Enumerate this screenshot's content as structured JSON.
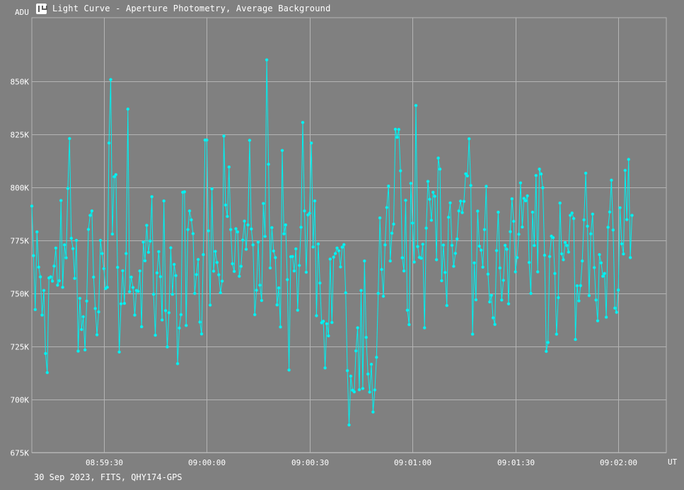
{
  "window": {
    "title": "Light Curve - Aperture Photometry, Average Background",
    "icon": "light-curve-app-icon"
  },
  "footer": "30 Sep 2023, FITS, QHY174-GPS",
  "colors": {
    "background": "#808080",
    "grid": "#b4b4b4",
    "series": "#00f0f0",
    "text": "#ffffff"
  },
  "chart_data": {
    "type": "line",
    "title": "Light Curve - Aperture Photometry, Average Background",
    "xlabel": "UT",
    "ylabel": "ADU",
    "xlim": [
      "08:59:09",
      "09:02:14"
    ],
    "ylim": [
      675000,
      880000
    ],
    "x_ticks": [
      "08:59:30",
      "09:00:00",
      "09:00:30",
      "09:01:00",
      "09:01:30",
      "09:02:00"
    ],
    "y_ticks": [
      {
        "value": 675000,
        "label": "675K"
      },
      {
        "value": 700000,
        "label": "700K"
      },
      {
        "value": 725000,
        "label": "725K"
      },
      {
        "value": 750000,
        "label": "750K"
      },
      {
        "value": 775000,
        "label": "775K"
      },
      {
        "value": 800000,
        "label": "800K"
      },
      {
        "value": 825000,
        "label": "825K"
      },
      {
        "value": 850000,
        "label": "850K"
      }
    ],
    "grid": true,
    "markers": true,
    "series": [
      {
        "x_start": "08:59:09",
        "x_step_seconds": 0.5,
        "values": [
          791200,
          767800,
          742400,
          779000,
          762400,
          757800,
          739800,
          751400,
          721700,
          712700,
          757300,
          757800,
          755800,
          762900,
          771400,
          753900,
          756000,
          793800,
          752900,
          772900,
          766800,
          799500,
          823000,
          776000,
          771100,
          757100,
          775000,
          722800,
          747700,
          733000,
          739000,
          723400,
          746400,
          780200,
          786800,
          788900,
          757700,
          742900,
          730500,
          741300,
          775000,
          768800,
          761700,
          752300,
          752900,
          820900,
          850800,
          778000,
          805000,
          806000,
          762300,
          722400,
          745100,
          760700,
          745300,
          768800,
          836900,
          750800,
          757700,
          752800,
          739800,
          751400,
          751000,
          760600,
          734300,
          774200,
          765400,
          782100,
          769400,
          774700,
          795600,
          749600,
          730300,
          759700,
          769700,
          757900,
          737500,
          793600,
          741900,
          724800,
          740900,
          771500,
          749600,
          763700,
          758400,
          716900,
          733700,
          740000,
          797700,
          797900,
          734900,
          780100,
          788900,
          784700,
          778200,
          750000,
          758900,
          766000,
          736500,
          730900,
          768300,
          822300,
          822300,
          779500,
          744500,
          799300,
          760500,
          769800,
          764600,
          758800,
          750300,
          755800,
          824200,
          791700,
          786300,
          809600,
          780100,
          764000,
          760400,
          780500,
          779000,
          758100,
          762800,
          775200,
          784100,
          770800,
          782300,
          822200,
          780400,
          772900,
          740000,
          751500,
          774200,
          753900,
          746700,
          792400,
          776900,
          860100,
          810900,
          762000,
          781000,
          770000,
          766900,
          744600,
          752600,
          734200,
          817400,
          778100,
          782300,
          756500,
          713900,
          767300,
          767400,
          760600,
          771000,
          742100,
          763200,
          781200,
          830600,
          788900,
          760000,
          787000,
          787800,
          820900,
          771900,
          793600,
          739500,
          773300,
          754900,
          736200,
          736900,
          714900,
          735700,
          730000,
          766200,
          736300,
          767100,
          768800,
          771400,
          770100,
          762500,
          771800,
          773000,
          750300,
          713600,
          688000,
          711000,
          704400,
          703600,
          722900,
          733800,
          704600,
          751400,
          705200,
          765300,
          729300,
          712000,
          703500,
          716600,
          694100,
          704500,
          719900,
          750000,
          785600,
          761300,
          748700,
          772900,
          790500,
          800600,
          765300,
          778400,
          782700,
          827400,
          823600,
          827300,
          807800,
          766800,
          760600,
          793900,
          742100,
          735300,
          801900,
          783200,
          764800,
          838600,
          772100,
          767000,
          766600,
          773200,
          733800,
          780800,
          802800,
          794400,
          784500,
          797700,
          795800,
          765900,
          813800,
          808600,
          756000,
          772800,
          759900,
          744300,
          785900,
          792700,
          772700,
          762800,
          768900,
          775700,
          788900,
          793500,
          788100,
          793400,
          806400,
          805400,
          822900,
          800900,
          730800,
          764400,
          747000,
          788800,
          772300,
          770400,
          762400,
          780100,
          800500,
          759100,
          746000,
          749100,
          738500,
          735400,
          770200,
          788300,
          762000,
          746900,
          756200,
          772700,
          770800,
          745100,
          779100,
          794600,
          784000,
          760200,
          766900,
          777900,
          802100,
          781300,
          794800,
          793700,
          796000,
          764600,
          750000,
          788300,
          772600,
          805600,
          760200,
          808600,
          806300,
          799800,
          768000,
          722700,
          726900,
          767400,
          777000,
          776300,
          759400,
          730800,
          748000,
          792600,
          768700,
          765900,
          774000,
          772600,
          769500,
          786800,
          787900,
          785300,
          728300,
          753600,
          746500,
          753700,
          765300,
          784700,
          806700,
          781700,
          749000,
          778100,
          787400,
          762200,
          746900,
          737100,
          768300,
          764400,
          758100,
          759400,
          738800,
          781200,
          788400,
          803400,
          779900,
          743100,
          741100,
          751600,
          790400,
          773400,
          768600,
          808000,
          784800,
          813200,
          766900,
          786800
        ]
      }
    ]
  }
}
